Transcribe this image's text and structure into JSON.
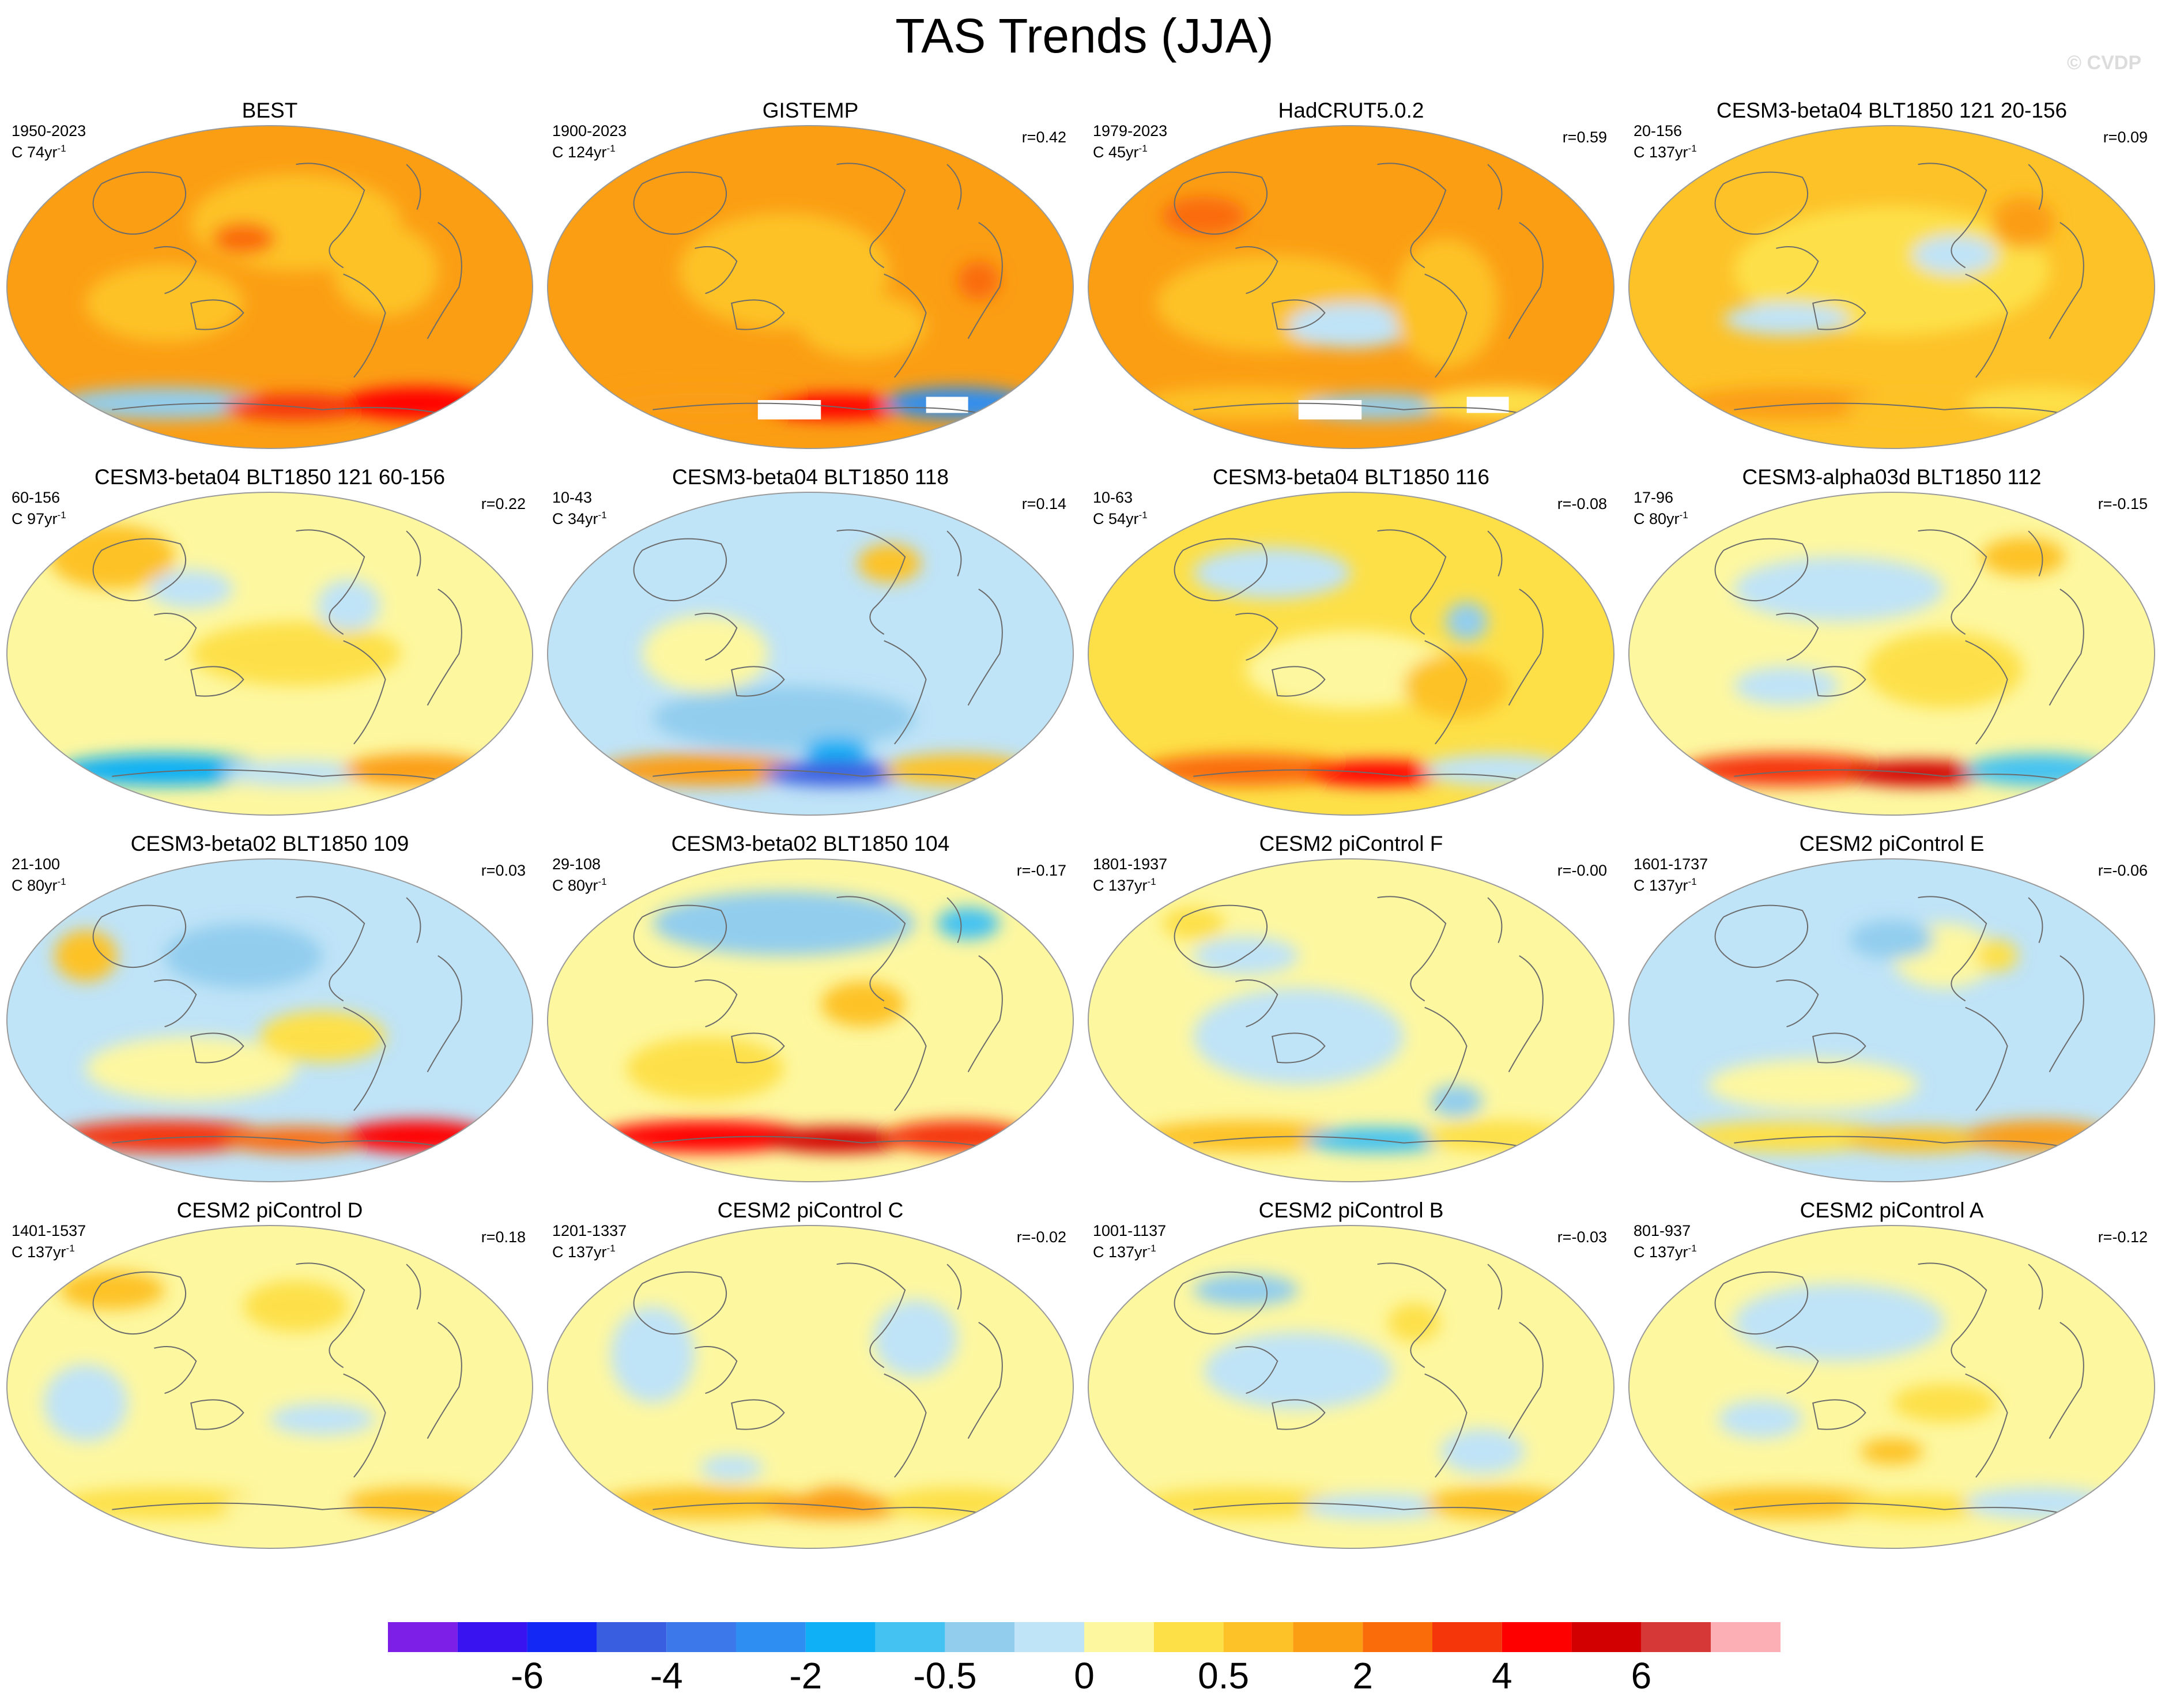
{
  "title": "TAS Trends (JJA)",
  "watermark": "© CVDP",
  "panels": [
    {
      "title": "BEST",
      "range": "1950-2023",
      "length": "C 74yr",
      "corr": "",
      "scheme": "warm1"
    },
    {
      "title": "GISTEMP",
      "range": "1900-2023",
      "length": "C 124yr",
      "corr": "r=0.42",
      "scheme": "warm2"
    },
    {
      "title": "HadCRUT5.0.2",
      "range": "1979-2023",
      "length": "C 45yr",
      "corr": "r=0.59",
      "scheme": "warm3"
    },
    {
      "title": "CESM3-beta04 BLT1850 121 20-156",
      "range": "20-156",
      "length": "C 137yr",
      "corr": "r=0.09",
      "scheme": "warm4"
    },
    {
      "title": "CESM3-beta04 BLT1850 121 60-156",
      "range": "60-156",
      "length": "C 97yr",
      "corr": "r=0.22",
      "scheme": "mixA"
    },
    {
      "title": "CESM3-beta04 BLT1850 118",
      "range": "10-43",
      "length": "C 34yr",
      "corr": "r=0.14",
      "scheme": "coolB"
    },
    {
      "title": "CESM3-beta04 BLT1850 116",
      "range": "10-63",
      "length": "C 54yr",
      "corr": "r=-0.08",
      "scheme": "mixC"
    },
    {
      "title": "CESM3-alpha03d BLT1850 112",
      "range": "17-96",
      "length": "C 80yr",
      "corr": "r=-0.15",
      "scheme": "mixD"
    },
    {
      "title": "CESM3-beta02 BLT1850 109",
      "range": "21-100",
      "length": "C 80yr",
      "corr": "r=0.03",
      "scheme": "mixE"
    },
    {
      "title": "CESM3-beta02 BLT1850 104",
      "range": "29-108",
      "length": "C 80yr",
      "corr": "r=-0.17",
      "scheme": "mixF"
    },
    {
      "title": "CESM2 piControl F",
      "range": "1801-1937",
      "length": "C 137yr",
      "corr": "r=-0.00",
      "scheme": "paleG"
    },
    {
      "title": "CESM2 piControl E",
      "range": "1601-1737",
      "length": "C 137yr",
      "corr": "r=-0.06",
      "scheme": "paleH"
    },
    {
      "title": "CESM2 piControl D",
      "range": "1401-1537",
      "length": "C 137yr",
      "corr": "r=0.18",
      "scheme": "paleI"
    },
    {
      "title": "CESM2 piControl C",
      "range": "1201-1337",
      "length": "C 137yr",
      "corr": "r=-0.02",
      "scheme": "paleJ"
    },
    {
      "title": "CESM2 piControl B",
      "range": "1001-1137",
      "length": "C 137yr",
      "corr": "r=-0.03",
      "scheme": "paleK"
    },
    {
      "title": "CESM2 piControl A",
      "range": "801-937",
      "length": "C 137yr",
      "corr": "r=-0.12",
      "scheme": "paleL"
    }
  ],
  "colorbar": {
    "colors": [
      "#7d1fe6",
      "#3a14f0",
      "#1428f5",
      "#3a5ee0",
      "#3c78ea",
      "#2f8ef2",
      "#0fb0f5",
      "#44c2f2",
      "#92cdee",
      "#bfe3f7",
      "#fdf7a0",
      "#fde048",
      "#fdc228",
      "#fb9e14",
      "#fa6c0a",
      "#f5360a",
      "#ff0000",
      "#d20000",
      "#d63838",
      "#fcafb4"
    ],
    "labels": [
      "-6",
      "-4",
      "-2",
      "-0.5",
      "0",
      "0.5",
      "2",
      "4",
      "6"
    ],
    "label_boundaries": [
      2,
      4,
      6,
      8,
      10,
      12,
      14,
      16,
      18
    ]
  }
}
